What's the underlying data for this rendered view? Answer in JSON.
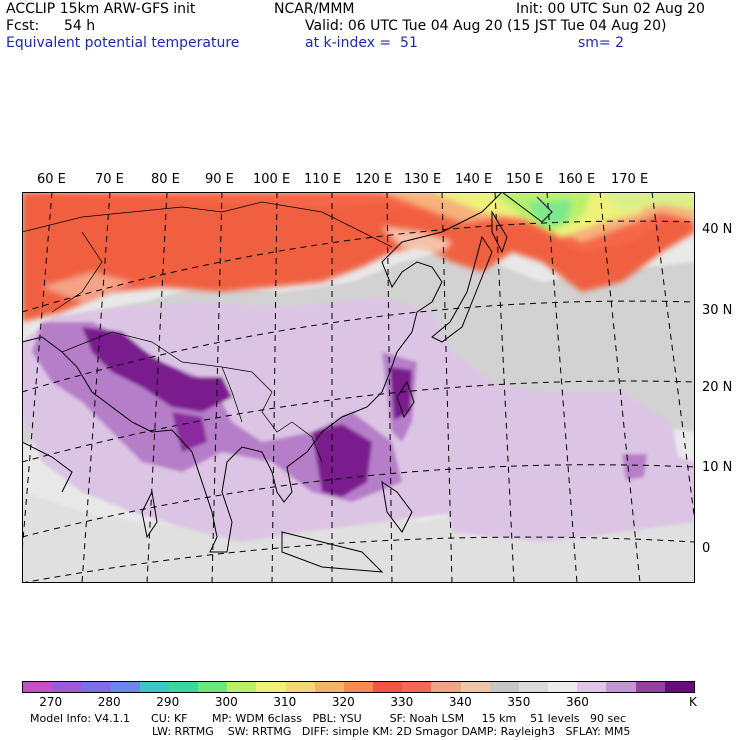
{
  "header": {
    "title": "ACCLIP 15km ARW-GFS init",
    "center": "NCAR/MMM",
    "init": "Init: 00 UTC Sun 02 Aug 20",
    "fcst_label": "Fcst:",
    "fcst_value": "54 h",
    "valid": "Valid: 06 UTC Tue 04 Aug 20 (15 JST Tue 04 Aug 20)",
    "field": "Equivalent potential temperature",
    "level": "at k-index =  51",
    "smooth": "sm= 2"
  },
  "map": {
    "lon_labels": [
      "60 E",
      "70 E",
      "80 E",
      "90 E",
      "100 E",
      "110 E",
      "120 E",
      "130 E",
      "140 E",
      "150 E",
      "160 E",
      "170 E"
    ],
    "lat_labels": [
      "40 N",
      "30 N",
      "20 N",
      "10 N",
      "0"
    ]
  },
  "colorbar": {
    "colors": [
      "#c44fc8",
      "#a05ad6",
      "#7e6fe6",
      "#6d86ee",
      "#3cc6c6",
      "#3cd79e",
      "#6fe87a",
      "#b7f26a",
      "#eef27a",
      "#f5d77a",
      "#f5b26a",
      "#f58a52",
      "#f2563e",
      "#f26a52",
      "#f5a386",
      "#f0c6a6",
      "#c6c6c6",
      "#dadada",
      "#ececec",
      "#e0c6e6",
      "#c296d4",
      "#9a3ea6",
      "#6a0a7e"
    ],
    "labels": [
      "270",
      "280",
      "290",
      "300",
      "310",
      "320",
      "330",
      "340",
      "350",
      "360"
    ],
    "unit": "K"
  },
  "model_info": {
    "line1": "Model Info: V4.1.1      CU: KF       MP: WDM 6class   PBL: YSU        SF: Noah LSM     15 km    51 levels   90 sec",
    "line2": "LW: RRTMG    SW: RRTMG   DIFF: simple KM: 2D Smagor DAMP: Rayleigh3   SFLAY: MM5"
  }
}
